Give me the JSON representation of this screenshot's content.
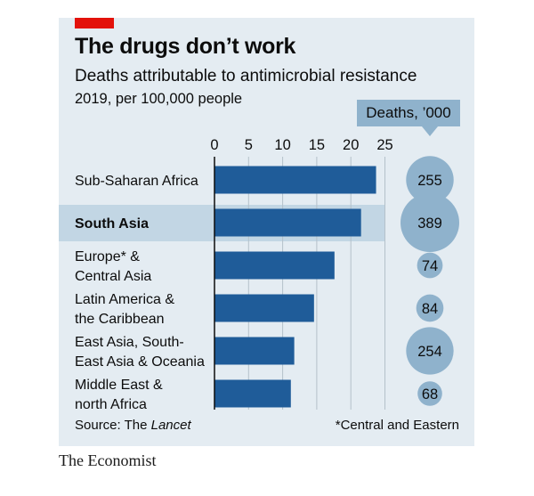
{
  "header": {
    "title": "The drugs don’t work",
    "subtitle": "Deaths attributable to antimicrobial resistance",
    "unit": "2019, per 100,000 people",
    "bubble_legend": "Deaths, ’000"
  },
  "footer": {
    "source_prefix": "Source: The ",
    "source_name": "Lancet",
    "note": "*Central and Eastern",
    "brand": "The Economist"
  },
  "colors": {
    "bar": "#1f5c99",
    "bubble": "#8fb2cc",
    "highlight": "#c2d6e4",
    "accent": "#e3120b"
  },
  "chart_data": {
    "type": "bar",
    "orientation": "horizontal",
    "title": "The drugs don’t work",
    "subtitle": "Deaths attributable to antimicrobial resistance",
    "xlabel": "2019, per 100,000 people",
    "xlim": [
      0,
      25
    ],
    "xticks": [
      "0",
      "5",
      "10",
      "15",
      "20",
      "25"
    ],
    "grid": true,
    "categories": [
      [
        "Sub-Saharan Africa"
      ],
      [
        "South Asia"
      ],
      [
        "Europe* &",
        "Central Asia"
      ],
      [
        "Latin America &",
        "the Caribbean"
      ],
      [
        "East Asia, South-",
        "East Asia & Oceania"
      ],
      [
        "Middle East &",
        "north Africa"
      ]
    ],
    "highlighted": [
      false,
      true,
      false,
      false,
      false,
      false
    ],
    "series": [
      {
        "name": "Deaths per 100,000 people",
        "values": [
          23.7,
          21.5,
          17.6,
          14.6,
          11.7,
          11.2
        ]
      },
      {
        "name": "Deaths, ’000",
        "values": [
          "255",
          "389",
          "74",
          "84",
          "254",
          "68"
        ]
      }
    ]
  }
}
